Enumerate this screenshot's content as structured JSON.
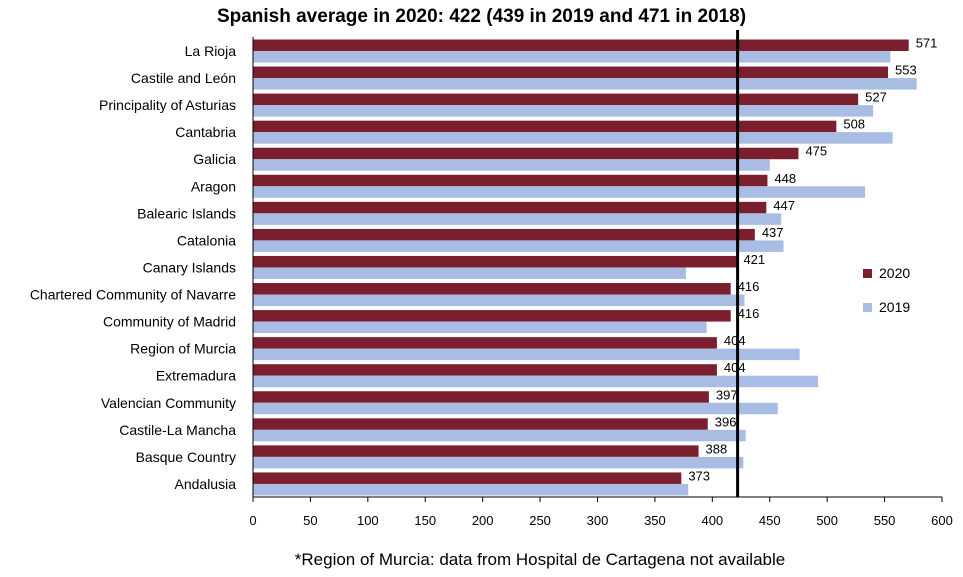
{
  "chart_data": {
    "type": "bar",
    "orientation": "horizontal",
    "title": "Spanish average in 2020: 422 (439 in 2019 and 471 in 2018)",
    "footnote": "*Region of Murcia: data from Hospital de Cartagena not available",
    "categories": [
      "La Rioja",
      "Castile and León",
      "Principality of Asturias",
      "Cantabria",
      "Galicia",
      "Aragon",
      "Balearic Islands",
      "Catalonia",
      "Canary Islands",
      "Chartered Community of Navarre",
      "Community of Madrid",
      "Region of Murcia",
      "Extremadura",
      "Valencian Community",
      "Castile-La Mancha",
      "Basque Country",
      "Andalusia"
    ],
    "series": [
      {
        "name": "2020",
        "color": "#7b1f2e",
        "values": [
          571,
          553,
          527,
          508,
          475,
          448,
          447,
          437,
          421,
          416,
          416,
          404,
          404,
          397,
          396,
          388,
          373
        ],
        "labels": [
          "571",
          "553",
          "527",
          "508",
          "475",
          "448",
          "447",
          "437",
          "421",
          "416",
          "416",
          "404",
          "404",
          "397",
          "396",
          "388",
          "373"
        ]
      },
      {
        "name": "2019",
        "color": "#a9bce3",
        "values": [
          555,
          578,
          540,
          557,
          450,
          533,
          460,
          462,
          377,
          428,
          395,
          476,
          492,
          457,
          429,
          427,
          379
        ]
      }
    ],
    "reference_line": {
      "value": 422,
      "color": "#000000"
    },
    "xlim": [
      0,
      600
    ],
    "xticks": [
      "0",
      "50",
      "100",
      "150",
      "200",
      "250",
      "300",
      "350",
      "400",
      "450",
      "500",
      "550",
      "600"
    ],
    "xlabel": "",
    "ylabel": "",
    "grid": false,
    "legend_position": "right"
  }
}
